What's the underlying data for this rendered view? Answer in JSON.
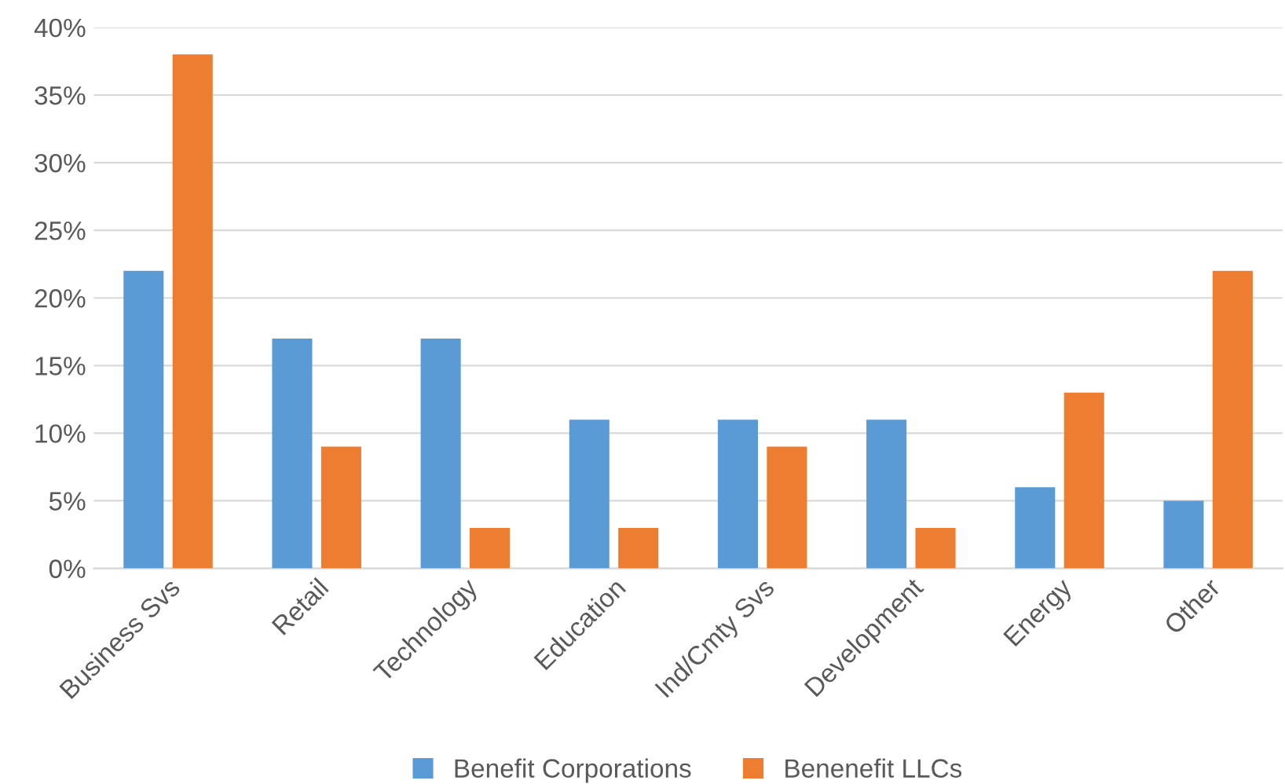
{
  "chart_data": {
    "type": "bar",
    "categories": [
      "Business Svs",
      "Retail",
      "Technology",
      "Education",
      "Ind/Cmty Svs",
      "Development",
      "Energy",
      "Other"
    ],
    "series": [
      {
        "name": "Benefit Corporations",
        "color": "#5b9bd5",
        "values": [
          22,
          17,
          17,
          11,
          11,
          11,
          6,
          5
        ]
      },
      {
        "name": "Benenefit LLCs",
        "color": "#ed7d31",
        "values": [
          38,
          9,
          3,
          3,
          9,
          3,
          13,
          22
        ]
      }
    ],
    "ylim": [
      0,
      40
    ],
    "yticks": [
      {
        "value": 0,
        "label": "0%"
      },
      {
        "value": 5,
        "label": "5%"
      },
      {
        "value": 10,
        "label": "10%"
      },
      {
        "value": 15,
        "label": "15%"
      },
      {
        "value": 20,
        "label": "20%"
      },
      {
        "value": 25,
        "label": "25%"
      },
      {
        "value": 30,
        "label": "30%"
      },
      {
        "value": 35,
        "label": "35%"
      },
      {
        "value": 40,
        "label": "40%"
      }
    ],
    "grid": "y",
    "legend": "bottom"
  }
}
